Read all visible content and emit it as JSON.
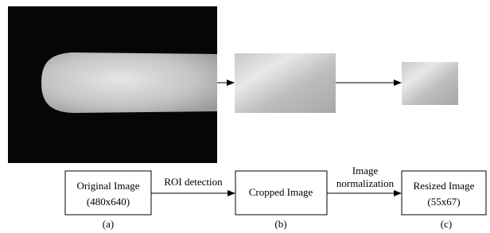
{
  "nodes": [
    {
      "label": "Original Image",
      "sublabel": "(480x640)",
      "caption": "(a)"
    },
    {
      "label": "Cropped Image",
      "caption": "(b)"
    },
    {
      "label": "Resized Image",
      "sublabel": "(55x67)",
      "caption": "(c)"
    }
  ],
  "edges": [
    {
      "lines": [
        "ROI detection"
      ]
    },
    {
      "lines": [
        "Image",
        "normalization"
      ]
    }
  ]
}
